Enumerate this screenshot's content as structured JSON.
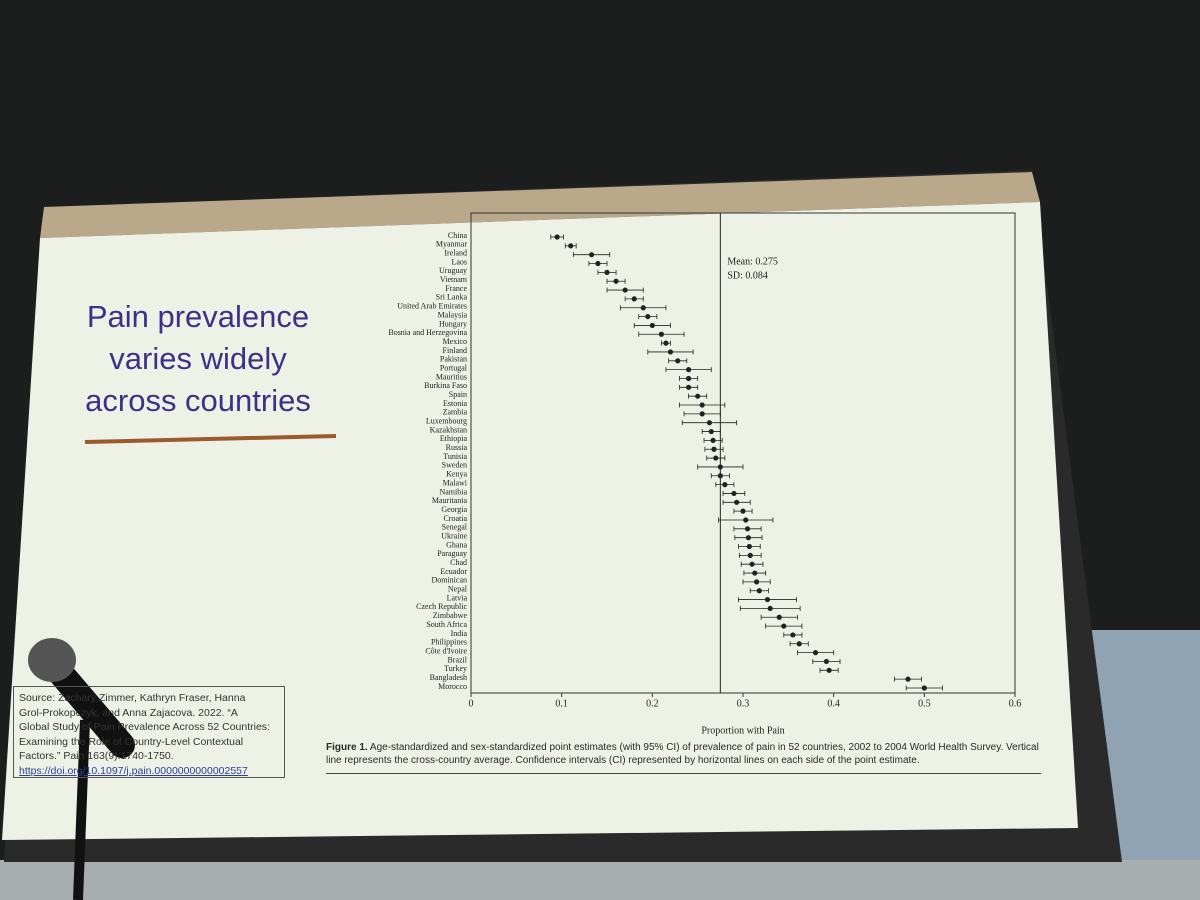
{
  "slide": {
    "title_lines": [
      "Pain prevalence",
      "varies widely",
      "across countries"
    ],
    "source_lines": [
      "Source: Zachary Zimmer, Kathryn Fraser, Hanna",
      "Grol-Prokopczyk, and Anna Zajacova. 2022. “A",
      "Global Study of Pain Prevalence Across 52 Countries:",
      "Examining the Role of Country-Level Contextual",
      "Factors.” Pain 163(9):1740-1750.",
      "https://doi.org/10.1097/j.pain.0000000000002557"
    ]
  },
  "chart_data": {
    "type": "errorbar",
    "xlabel": "Proportion with Pain",
    "caption_label": "Figure 1.",
    "caption": "Age-standardized and sex-standardized point estimates (with 95% CI) of prevalence of pain in 52 countries, 2002 to 2004 World Health Survey. Vertical line represents the cross-country average. Confidence intervals (CI) represented by horizontal lines on each side of the point estimate.",
    "annotations": [
      "Mean: 0.275",
      "SD: 0.084"
    ],
    "mean_line": 0.275,
    "color": "#222222",
    "categories": [
      "China",
      "Myanmar",
      "Ireland",
      "Laos",
      "Uruguay",
      "Vietnam",
      "France",
      "Sri Lanka",
      "United Arab Emirates",
      "Malaysia",
      "Hungary",
      "Bosnia and Herzegovina",
      "Mexico",
      "Finland",
      "Pakistan",
      "Portugal",
      "Mauritius",
      "Burkina Faso",
      "Spain",
      "Estonia",
      "Zambia",
      "Luxembourg",
      "Kazakhstan",
      "Ethiopia",
      "Russia",
      "Tunisia",
      "Sweden",
      "Kenya",
      "Malawi",
      "Namibia",
      "Mauritania",
      "Georgia",
      "Croatia",
      "Senegal",
      "Ukraine",
      "Ghana",
      "Paraguay",
      "Chad",
      "Ecuador",
      "Dominican",
      "Nepal",
      "Latvia",
      "Czech Republic",
      "Zimbabwe",
      "South Africa",
      "India",
      "Philippines",
      "Côte d'Ivoire",
      "Brazil",
      "Turkey",
      "Bangladesh",
      "Morocco"
    ],
    "values": [
      0.095,
      0.11,
      0.133,
      0.14,
      0.15,
      0.16,
      0.17,
      0.18,
      0.19,
      0.195,
      0.2,
      0.21,
      0.215,
      0.22,
      0.228,
      0.24,
      0.24,
      0.24,
      0.25,
      0.255,
      0.255,
      0.263,
      0.265,
      0.267,
      0.268,
      0.27,
      0.275,
      0.275,
      0.28,
      0.29,
      0.293,
      0.3,
      0.303,
      0.305,
      0.306,
      0.307,
      0.308,
      0.31,
      0.313,
      0.315,
      0.318,
      0.327,
      0.33,
      0.34,
      0.345,
      0.355,
      0.362,
      0.38,
      0.392,
      0.395,
      0.482,
      0.5
    ],
    "errors": [
      0.007,
      0.006,
      0.02,
      0.01,
      0.01,
      0.01,
      0.02,
      0.01,
      0.025,
      0.01,
      0.02,
      0.025,
      0.005,
      0.025,
      0.01,
      0.025,
      0.01,
      0.01,
      0.01,
      0.025,
      0.02,
      0.03,
      0.01,
      0.01,
      0.01,
      0.01,
      0.025,
      0.01,
      0.01,
      0.012,
      0.015,
      0.01,
      0.03,
      0.015,
      0.015,
      0.012,
      0.012,
      0.012,
      0.012,
      0.015,
      0.01,
      0.032,
      0.033,
      0.02,
      0.02,
      0.01,
      0.01,
      0.02,
      0.015,
      0.01,
      0.015,
      0.02
    ],
    "xlim": [
      0,
      0.6
    ],
    "xticks": [
      0,
      0.1,
      0.2,
      0.3,
      0.4,
      0.5,
      0.6
    ]
  }
}
